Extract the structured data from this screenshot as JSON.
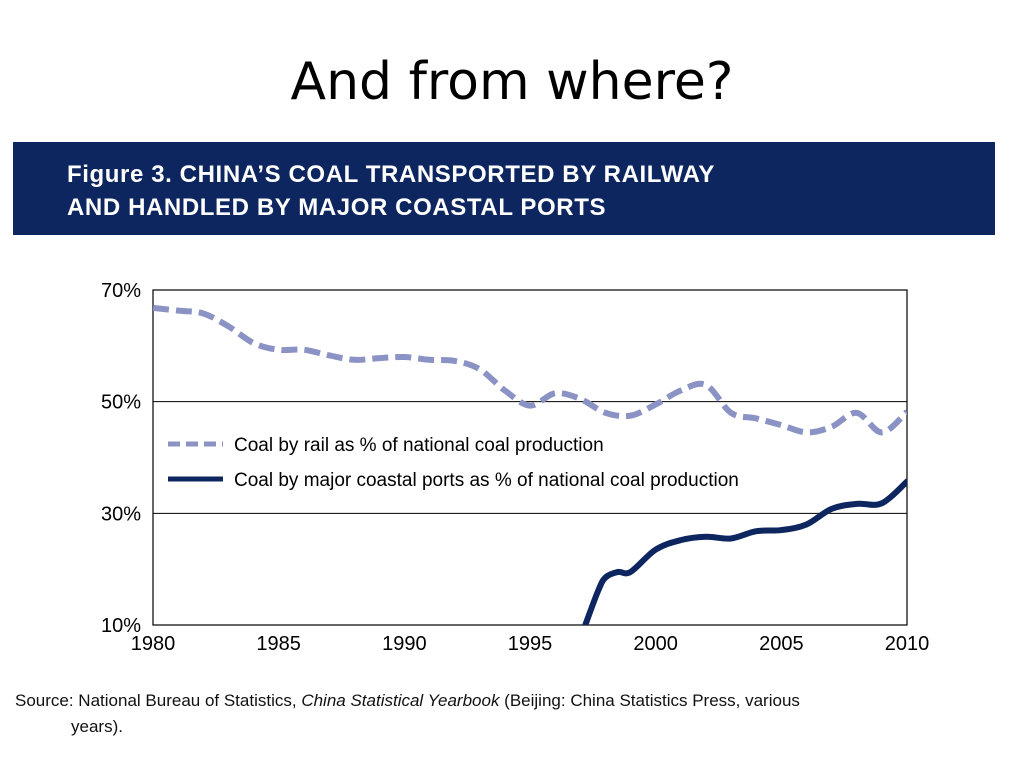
{
  "slide": {
    "title": "And from where?"
  },
  "figure": {
    "title": "Figure 3. CHINA’S COAL TRANSPORTED BY RAILWAY\nAND HANDLED BY MAJOR COASTAL PORTS",
    "banner_color": "#0d2660"
  },
  "source": {
    "prefix": "Source: National Bureau of Statistics, ",
    "italic": "China Statistical Yearbook",
    "suffix": " (Beijing: China Statistics Press, various",
    "continuation": "years)."
  },
  "chart_data": {
    "type": "line",
    "title": "",
    "xlabel": "",
    "ylabel": "",
    "xlim": [
      1980,
      2010
    ],
    "ylim": [
      10,
      70
    ],
    "xticks": [
      "1980",
      "1985",
      "1990",
      "1995",
      "2000",
      "2005",
      "2010"
    ],
    "yticks": [
      "70%",
      "50%",
      "30%",
      "10%"
    ],
    "gridlines_y": [
      30,
      50
    ],
    "legend_position": "center-left",
    "series": [
      {
        "name": "Coal by rail as % of national coal production",
        "style": "dashed",
        "color": "#8b92c4",
        "x": [
          1980,
          1981,
          1982,
          1983,
          1984,
          1985,
          1986,
          1987,
          1988,
          1989,
          1990,
          1991,
          1992,
          1993,
          1994,
          1995,
          1996,
          1997,
          1998,
          1999,
          2000,
          2001,
          2002,
          2003,
          2004,
          2005,
          2006,
          2007,
          2008,
          2009,
          2010
        ],
        "y": [
          66.8,
          66.3,
          65.8,
          63.5,
          60.5,
          59.3,
          59.3,
          58.3,
          57.5,
          57.8,
          58.0,
          57.5,
          57.3,
          55.8,
          52.0,
          49.3,
          51.5,
          50.5,
          48.0,
          47.5,
          49.5,
          52.0,
          53.0,
          48.0,
          47.0,
          45.8,
          44.5,
          45.5,
          48.0,
          44.5,
          48.2
        ]
      },
      {
        "name": "Coal by major coastal ports as % of national coal production",
        "style": "solid",
        "color": "#0d2660",
        "x": [
          1997.2,
          1997.7,
          1998,
          1998.5,
          1999,
          2000,
          2001,
          2002,
          2003,
          2004,
          2005,
          2006,
          2007,
          2008,
          2009,
          2010
        ],
        "y": [
          10,
          16,
          18.5,
          19.5,
          19.5,
          23.5,
          25.2,
          25.8,
          25.5,
          26.8,
          27.0,
          28.0,
          30.8,
          31.7,
          31.8,
          35.7
        ]
      }
    ]
  }
}
